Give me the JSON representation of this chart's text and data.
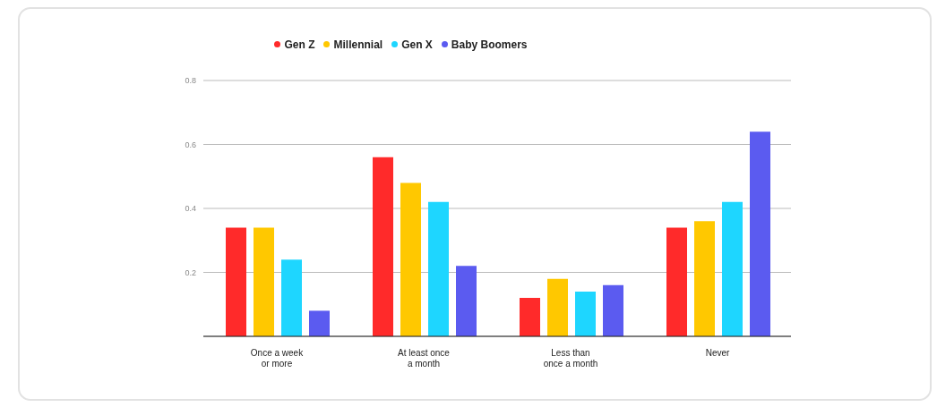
{
  "chart_data": {
    "type": "bar",
    "categories": [
      "Once a week or more",
      "At least once a month",
      "Less than once a month",
      "Never"
    ],
    "series": [
      {
        "name": "Gen Z",
        "color": "#ff2a2a",
        "values": [
          0.34,
          0.56,
          0.12,
          0.34
        ]
      },
      {
        "name": "Millennial",
        "color": "#ffc800",
        "values": [
          0.34,
          0.48,
          0.18,
          0.36
        ]
      },
      {
        "name": "Gen X",
        "color": "#1ed6ff",
        "values": [
          0.24,
          0.42,
          0.14,
          0.42
        ]
      },
      {
        "name": "Baby Boomers",
        "color": "#5b5bf0",
        "values": [
          0.08,
          0.22,
          0.16,
          0.64
        ]
      }
    ],
    "ylim": [
      0,
      0.8
    ],
    "yticks": [
      {
        "value": 0,
        "label": null
      },
      0.2,
      0.4,
      0.6,
      0.8
    ],
    "grid": "y",
    "legend": "top"
  }
}
